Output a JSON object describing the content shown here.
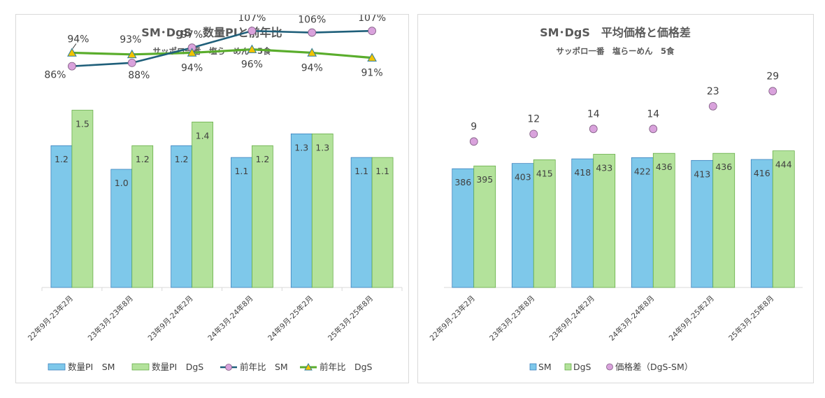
{
  "colors": {
    "sm_bar": "#7ec8ea",
    "sm_bar_stroke": "#2e75b6",
    "dgs_bar": "#b3e29b",
    "dgs_bar_stroke": "#5aa63a",
    "sm_line": "#1f5f7a",
    "sm_marker": "#d9a2dc",
    "dgs_line": "#5aad2c",
    "dgs_marker": "#f2c300",
    "gap_marker": "#d9a2dc"
  },
  "chart_data": [
    {
      "type": "bar",
      "title": "SM･DgS　数量PIと前年比",
      "subtitle": "サッポロ一番　塩らーめん　5食",
      "categories": [
        "22年9月-23年2月",
        "23年3月-23年8月",
        "23年9月-24年2月",
        "24年3月-24年8月",
        "24年9月-25年2月",
        "25年3月-25年8月"
      ],
      "series": [
        {
          "name": "数量PI　SM",
          "type": "bar",
          "values": [
            1.2,
            1.0,
            1.2,
            1.1,
            1.3,
            1.1
          ],
          "labels": [
            "1.2",
            "1.0",
            "1.2",
            "1.1",
            "1.3",
            "1.1"
          ]
        },
        {
          "name": "数量PI　DgS",
          "type": "bar",
          "values": [
            1.5,
            1.2,
            1.4,
            1.2,
            1.3,
            1.1
          ],
          "labels": [
            "1.5",
            "1.2",
            "1.4",
            "1.2",
            "1.3",
            "1.1"
          ]
        },
        {
          "name": "前年比　SM",
          "type": "line",
          "values": [
            86,
            88,
            97,
            107,
            106,
            107
          ],
          "labels": [
            "86%",
            "88%",
            "97%",
            "107%",
            "106%",
            "107%"
          ]
        },
        {
          "name": "前年比　DgS",
          "type": "line",
          "values": [
            94,
            93,
            94,
            96,
            94,
            91
          ],
          "labels": [
            "94%",
            "93%",
            "94%",
            "96%",
            "94%",
            "91%"
          ]
        }
      ],
      "y_bar_range": [
        0,
        1.8
      ],
      "y_line_range": [
        60,
        115
      ],
      "grid": false,
      "legend": "bottom"
    },
    {
      "type": "bar",
      "title": "SM･DgS　平均価格と価格差",
      "subtitle": "サッポロ一番　塩らーめん　5食",
      "categories": [
        "22年9月-23年2月",
        "23年3月-23年8月",
        "23年9月-24年2月",
        "24年3月-24年8月",
        "24年9月-25年2月",
        "25年3月-25年8月"
      ],
      "series": [
        {
          "name": "SM",
          "type": "bar",
          "values": [
            386,
            403,
            418,
            422,
            413,
            416
          ],
          "labels": [
            "386",
            "403",
            "418",
            "422",
            "413",
            "416"
          ]
        },
        {
          "name": "DgS",
          "type": "bar",
          "values": [
            395,
            415,
            433,
            436,
            436,
            444
          ],
          "labels": [
            "395",
            "415",
            "433",
            "436",
            "436",
            "444"
          ]
        },
        {
          "name": "価格差（DgS-SM）",
          "type": "scatter",
          "values": [
            9,
            12,
            14,
            14,
            23,
            29
          ],
          "labels": [
            "9",
            "12",
            "14",
            "14",
            "23",
            "29"
          ]
        }
      ],
      "y_bar_range": [
        0,
        720
      ],
      "y_scatter_range": [
        -52,
        38
      ],
      "grid": false,
      "legend": "bottom"
    }
  ]
}
